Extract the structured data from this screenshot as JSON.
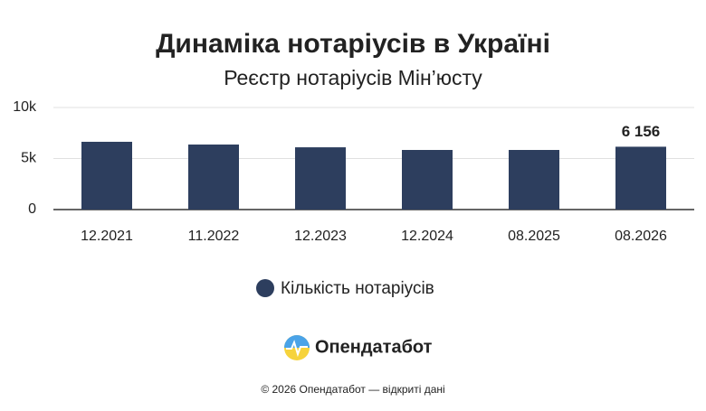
{
  "chart_data": {
    "type": "bar",
    "title": "Динаміка нотаріусів в Україні",
    "subtitle": "Реєстр нотаріусів Мін’юсту",
    "categories": [
      "12.2021",
      "11.2022",
      "12.2023",
      "12.2024",
      "08.2025",
      "08.2026"
    ],
    "series": [
      {
        "name": "Кількість нотаріусів",
        "color": "#2d3e5e",
        "values": [
          6640,
          6370,
          6100,
          5840,
          5840,
          6156
        ],
        "value_labels": [
          null,
          null,
          null,
          null,
          null,
          "6 156"
        ]
      }
    ],
    "ylim": [
      0,
      10000
    ],
    "yticks": [
      0,
      {
        "value": 5000,
        "label": "5k"
      },
      {
        "value": 10000,
        "label": "10k"
      }
    ],
    "grid": true,
    "legend": "bottom"
  },
  "brand": "Опендатабот",
  "footer": "© 2026 Опендатабот — відкриті дані"
}
